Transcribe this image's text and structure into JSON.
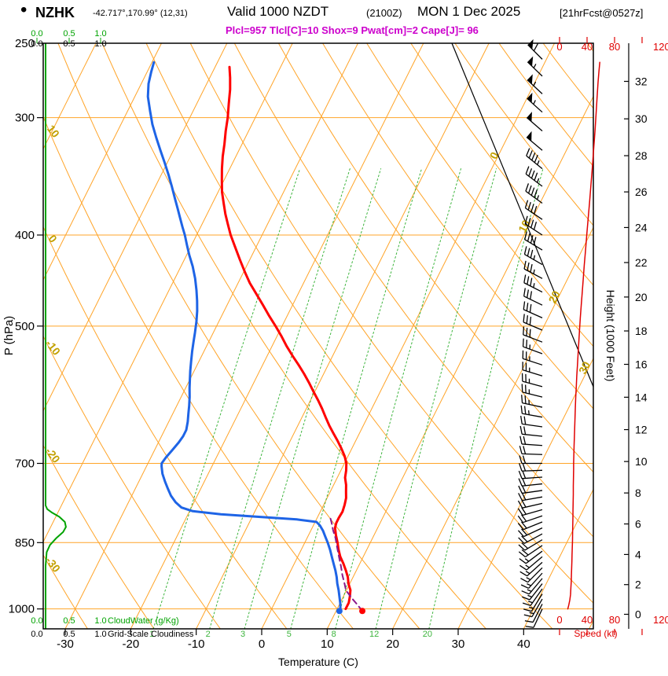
{
  "header": {
    "bullet": "•",
    "station": "NZHK",
    "coords": "-42.717°,170.99° (12,31)",
    "valid_prefix": "Valid 1000 NZDT",
    "valid_zulu": "(2100Z)",
    "valid_date": "MON 1 Dec 2025",
    "forecast_tag": "[21hrFcst@0527z]",
    "indices": "Plcl=957 Tlcl[C]=10 Shox=9 Pwat[cm]=2 Cape[J]= 96"
  },
  "axes": {
    "pressure": {
      "label": "P (hPa)",
      "ticks": [
        250,
        300,
        400,
        500,
        700,
        850,
        1000
      ]
    },
    "temperature": {
      "label": "Temperature (C)",
      "ticks": [
        -30,
        -20,
        -10,
        0,
        10,
        20,
        30,
        40
      ]
    },
    "height": {
      "label": "Height (1000 Feet)",
      "ticks": [
        0,
        2,
        4,
        6,
        8,
        10,
        12,
        14,
        16,
        18,
        20,
        22,
        24,
        26,
        28,
        30,
        32
      ]
    },
    "speed": {
      "label": "Speed (kt)",
      "ticks": [
        0,
        40,
        80,
        120
      ]
    },
    "cloudwater": {
      "label": "CloudWater (g/Kg)",
      "ticks": [
        "0.0",
        "0.5",
        "1.0"
      ]
    },
    "cloudiness": {
      "label": "Grid-Scale Cloudiness",
      "ticks": [
        "0.0",
        "0.5",
        "1.0"
      ]
    }
  },
  "colors": {
    "grid": "#FFA428",
    "grid_label": "#C2A000",
    "mixing": "#3CB43C",
    "cloudwater": "#00A300",
    "temperature": "#FF0000",
    "dewpoint": "#1E64E6",
    "parcel": "#8B1A8B",
    "speed": "#E00000",
    "barb": "#000000",
    "subtitle": "#CC00CC"
  },
  "chart_data": {
    "type": "skewt-logp",
    "pressure_range": [
      250,
      1050
    ],
    "temp_axis_range": [
      -30,
      40
    ],
    "skew_ratio": 0.5,
    "isotherm_step": 10,
    "isotherm_labels": [
      0,
      10,
      20,
      30
    ],
    "dry_adiabat_labels": [
      10,
      0,
      -10,
      -20,
      -30
    ],
    "mixing_ratio_lines": [
      1,
      2,
      3,
      5,
      8,
      12,
      20
    ],
    "temperature_profile": [
      [
        1000,
        11.3
      ],
      [
        985,
        11.3
      ],
      [
        970,
        11.0
      ],
      [
        955,
        10.6
      ],
      [
        940,
        9.8
      ],
      [
        925,
        9.2
      ],
      [
        910,
        8.4
      ],
      [
        895,
        7.5
      ],
      [
        880,
        6.5
      ],
      [
        865,
        5.7
      ],
      [
        850,
        5.0
      ],
      [
        835,
        4.2
      ],
      [
        820,
        3.5
      ],
      [
        810,
        3.3
      ],
      [
        800,
        3.3
      ],
      [
        788,
        3.4
      ],
      [
        775,
        3.2
      ],
      [
        762,
        2.9
      ],
      [
        750,
        2.4
      ],
      [
        738,
        1.9
      ],
      [
        725,
        1.2
      ],
      [
        712,
        0.8
      ],
      [
        700,
        0.3
      ],
      [
        688,
        -0.5
      ],
      [
        675,
        -1.6
      ],
      [
        662,
        -2.8
      ],
      [
        650,
        -4.0
      ],
      [
        638,
        -5.2
      ],
      [
        625,
        -6.4
      ],
      [
        612,
        -7.6
      ],
      [
        600,
        -8.8
      ],
      [
        588,
        -10.1
      ],
      [
        575,
        -11.5
      ],
      [
        562,
        -13.0
      ],
      [
        550,
        -14.5
      ],
      [
        538,
        -16.1
      ],
      [
        525,
        -17.8
      ],
      [
        512,
        -19.4
      ],
      [
        500,
        -21.0
      ],
      [
        488,
        -22.7
      ],
      [
        475,
        -24.5
      ],
      [
        462,
        -26.4
      ],
      [
        450,
        -28.2
      ],
      [
        438,
        -29.8
      ],
      [
        425,
        -31.5
      ],
      [
        412,
        -33.2
      ],
      [
        400,
        -34.8
      ],
      [
        390,
        -36.0
      ],
      [
        380,
        -37.2
      ],
      [
        370,
        -38.3
      ],
      [
        360,
        -39.4
      ],
      [
        350,
        -40.3
      ],
      [
        340,
        -41.2
      ],
      [
        330,
        -42.0
      ],
      [
        320,
        -42.7
      ],
      [
        310,
        -43.5
      ],
      [
        300,
        -44.2
      ],
      [
        290,
        -45.1
      ],
      [
        280,
        -46.0
      ],
      [
        272,
        -46.9
      ],
      [
        265,
        -47.8
      ]
    ],
    "dewpoint_profile": [
      [
        1000,
        10.5
      ],
      [
        985,
        10.0
      ],
      [
        970,
        9.4
      ],
      [
        955,
        8.8
      ],
      [
        940,
        8.1
      ],
      [
        925,
        7.5
      ],
      [
        910,
        6.8
      ],
      [
        895,
        6.0
      ],
      [
        880,
        5.2
      ],
      [
        865,
        4.4
      ],
      [
        850,
        3.5
      ],
      [
        838,
        2.7
      ],
      [
        826,
        1.9
      ],
      [
        815,
        1.0
      ],
      [
        808,
        0.2
      ],
      [
        803,
        -3.0
      ],
      [
        798,
        -9.0
      ],
      [
        793,
        -15.0
      ],
      [
        787,
        -19.5
      ],
      [
        780,
        -21.5
      ],
      [
        770,
        -22.8
      ],
      [
        758,
        -24.0
      ],
      [
        745,
        -25.0
      ],
      [
        732,
        -26.0
      ],
      [
        718,
        -27.0
      ],
      [
        705,
        -27.7
      ],
      [
        700,
        -27.9
      ],
      [
        690,
        -27.7
      ],
      [
        678,
        -27.3
      ],
      [
        665,
        -26.9
      ],
      [
        655,
        -26.7
      ],
      [
        645,
        -26.7
      ],
      [
        632,
        -27.1
      ],
      [
        620,
        -27.6
      ],
      [
        608,
        -28.1
      ],
      [
        595,
        -28.7
      ],
      [
        582,
        -29.4
      ],
      [
        570,
        -30.0
      ],
      [
        558,
        -30.6
      ],
      [
        545,
        -31.2
      ],
      [
        532,
        -31.8
      ],
      [
        520,
        -32.3
      ],
      [
        508,
        -32.8
      ],
      [
        495,
        -33.4
      ],
      [
        482,
        -34.1
      ],
      [
        470,
        -34.9
      ],
      [
        458,
        -35.8
      ],
      [
        445,
        -36.9
      ],
      [
        432,
        -38.2
      ],
      [
        420,
        -39.6
      ],
      [
        410,
        -40.7
      ],
      [
        400,
        -41.8
      ],
      [
        392,
        -42.8
      ],
      [
        383,
        -43.9
      ],
      [
        375,
        -44.9
      ],
      [
        365,
        -46.2
      ],
      [
        355,
        -47.5
      ],
      [
        345,
        -48.9
      ],
      [
        335,
        -50.4
      ],
      [
        325,
        -52.0
      ],
      [
        315,
        -53.6
      ],
      [
        305,
        -55.2
      ],
      [
        295,
        -56.6
      ],
      [
        285,
        -58.0
      ],
      [
        276,
        -58.9
      ],
      [
        268,
        -59.4
      ],
      [
        262,
        -59.7
      ]
    ],
    "parcel_trace": [
      [
        1005,
        14.0
      ],
      [
        990,
        12.8
      ],
      [
        975,
        11.5
      ],
      [
        960,
        10.3
      ],
      [
        957,
        10.0
      ],
      [
        940,
        9.2
      ],
      [
        920,
        8.2
      ],
      [
        900,
        7.3
      ],
      [
        880,
        6.3
      ],
      [
        860,
        5.3
      ],
      [
        840,
        4.3
      ],
      [
        825,
        3.4
      ],
      [
        810,
        2.6
      ],
      [
        800,
        2.0
      ],
      [
        795,
        1.7
      ]
    ],
    "surface_temp_marker": [
      1005,
      14.0
    ],
    "surface_dewpoint_marker": [
      1005,
      10.5
    ],
    "cloud_water_profile": [
      [
        1050,
        0
      ],
      [
        900,
        0
      ],
      [
        870,
        0.02
      ],
      [
        855,
        0.08
      ],
      [
        840,
        0.2
      ],
      [
        828,
        0.32
      ],
      [
        818,
        0.37
      ],
      [
        808,
        0.35
      ],
      [
        798,
        0.25
      ],
      [
        790,
        0.12
      ],
      [
        783,
        0.03
      ],
      [
        776,
        0
      ],
      [
        500,
        0
      ],
      [
        250,
        0
      ]
    ],
    "wind_speed_profile": [
      [
        1000,
        12
      ],
      [
        990,
        13.5
      ],
      [
        978,
        15
      ],
      [
        965,
        16
      ],
      [
        950,
        16.5
      ],
      [
        935,
        17
      ],
      [
        920,
        17.3
      ],
      [
        905,
        17.6
      ],
      [
        890,
        17.9
      ],
      [
        875,
        18.2
      ],
      [
        860,
        18.5
      ],
      [
        845,
        18.8
      ],
      [
        830,
        19
      ],
      [
        815,
        19.2
      ],
      [
        800,
        19.4
      ],
      [
        785,
        19.6
      ],
      [
        770,
        19.8
      ],
      [
        755,
        20
      ],
      [
        740,
        20
      ],
      [
        725,
        20.2
      ],
      [
        710,
        20.4
      ],
      [
        700,
        20.5
      ],
      [
        685,
        20.8
      ],
      [
        670,
        21.2
      ],
      [
        655,
        21.6
      ],
      [
        640,
        22
      ],
      [
        625,
        22.5
      ],
      [
        610,
        23
      ],
      [
        595,
        23.6
      ],
      [
        580,
        24.3
      ],
      [
        565,
        25
      ],
      [
        550,
        26
      ],
      [
        535,
        27
      ],
      [
        520,
        28
      ],
      [
        505,
        29
      ],
      [
        490,
        30.2
      ],
      [
        475,
        31.5
      ],
      [
        460,
        33
      ],
      [
        445,
        34.5
      ],
      [
        430,
        36
      ],
      [
        415,
        37.8
      ],
      [
        400,
        39.5
      ],
      [
        385,
        41.5
      ],
      [
        370,
        43.5
      ],
      [
        355,
        45.5
      ],
      [
        340,
        47.5
      ],
      [
        325,
        49.5
      ],
      [
        310,
        51.5
      ],
      [
        298,
        53
      ],
      [
        286,
        54.5
      ],
      [
        275,
        56
      ],
      [
        268,
        57.3
      ],
      [
        262,
        58.5
      ]
    ],
    "wind_barbs": [
      [
        1000,
        205,
        12
      ],
      [
        988,
        207,
        12
      ],
      [
        976,
        210,
        13
      ],
      [
        964,
        212,
        13
      ],
      [
        952,
        215,
        14
      ],
      [
        940,
        218,
        15
      ],
      [
        928,
        220,
        15
      ],
      [
        916,
        222,
        16
      ],
      [
        904,
        225,
        16
      ],
      [
        892,
        228,
        17
      ],
      [
        880,
        230,
        17
      ],
      [
        868,
        233,
        17
      ],
      [
        856,
        236,
        18
      ],
      [
        844,
        239,
        18
      ],
      [
        832,
        242,
        19
      ],
      [
        820,
        245,
        19
      ],
      [
        808,
        248,
        19
      ],
      [
        796,
        251,
        19
      ],
      [
        784,
        254,
        20
      ],
      [
        772,
        257,
        20
      ],
      [
        760,
        260,
        20
      ],
      [
        748,
        262,
        20
      ],
      [
        736,
        264,
        20
      ],
      [
        724,
        266,
        20
      ],
      [
        712,
        268,
        20
      ],
      [
        700,
        270,
        21
      ],
      [
        685,
        272,
        21
      ],
      [
        670,
        274,
        21
      ],
      [
        655,
        276,
        22
      ],
      [
        640,
        278,
        22
      ],
      [
        625,
        280,
        23
      ],
      [
        610,
        282,
        23
      ],
      [
        595,
        284,
        24
      ],
      [
        580,
        285,
        25
      ],
      [
        565,
        287,
        25
      ],
      [
        550,
        288,
        26
      ],
      [
        535,
        290,
        27
      ],
      [
        520,
        291,
        28
      ],
      [
        505,
        293,
        29
      ],
      [
        490,
        294,
        30
      ],
      [
        475,
        296,
        32
      ],
      [
        460,
        297,
        33
      ],
      [
        445,
        298,
        35
      ],
      [
        430,
        300,
        36
      ],
      [
        415,
        301,
        38
      ],
      [
        400,
        303,
        40
      ],
      [
        385,
        304,
        42
      ],
      [
        370,
        306,
        44
      ],
      [
        355,
        307,
        45
      ],
      [
        340,
        309,
        47
      ],
      [
        325,
        310,
        49
      ],
      [
        310,
        311,
        51
      ],
      [
        296,
        312,
        53
      ],
      [
        283,
        313,
        55
      ],
      [
        271,
        314,
        57
      ],
      [
        260,
        315,
        58
      ]
    ]
  }
}
